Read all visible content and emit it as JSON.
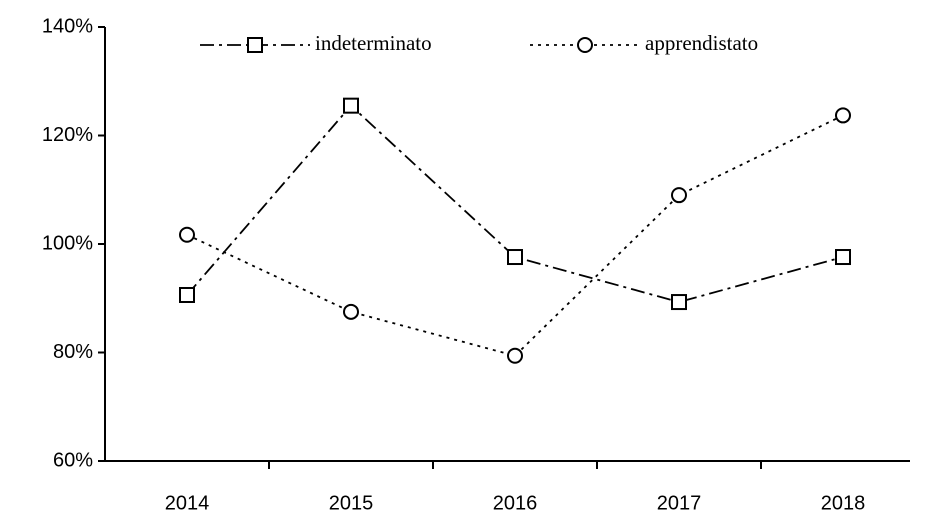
{
  "chart_data": {
    "type": "line",
    "categories": [
      "2014",
      "2015",
      "2016",
      "2017",
      "2018"
    ],
    "series": [
      {
        "name": "indeterminato",
        "color": "#000000",
        "marker": "square",
        "line_style": "dashdot",
        "values": [
          90.6,
          125.5,
          97.6,
          89.3,
          97.6
        ]
      },
      {
        "name": "apprendistato",
        "color": "#000000",
        "marker": "circle",
        "line_style": "dotted",
        "values": [
          101.7,
          87.5,
          79.4,
          109,
          123.7
        ]
      }
    ],
    "ylim": [
      60,
      140
    ],
    "yticks": [
      {
        "value": 60,
        "label": "60%"
      },
      {
        "value": 80,
        "label": "80%"
      },
      {
        "value": 100,
        "label": "100%"
      },
      {
        "value": 120,
        "label": "120%"
      },
      {
        "value": 140,
        "label": "140%"
      }
    ],
    "grid": false,
    "legend": "top"
  }
}
